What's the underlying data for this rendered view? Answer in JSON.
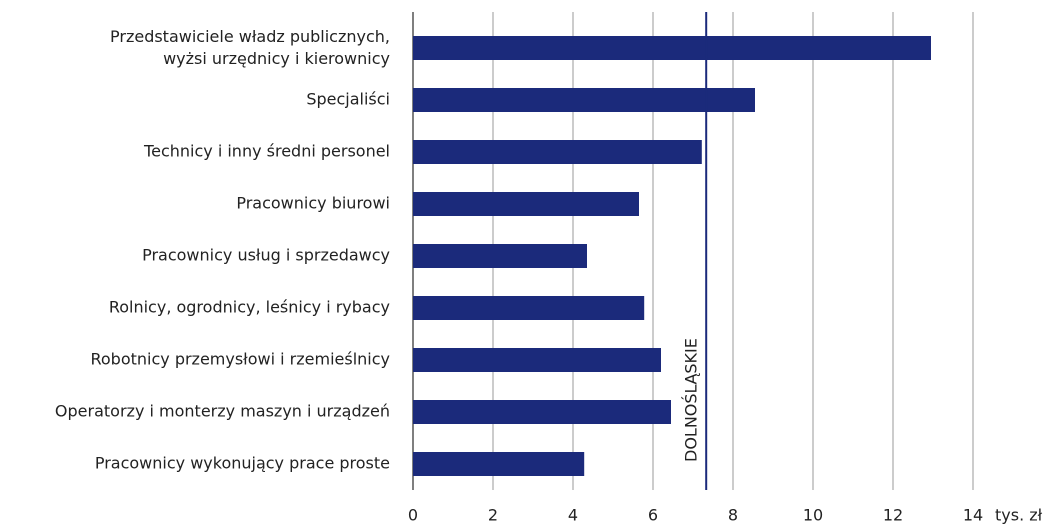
{
  "chart_data": {
    "type": "bar",
    "orientation": "horizontal",
    "categories": [
      "Przedstawiciele władz publicznych,\nwyżsi urzędnicy i kierownicy",
      "Specjaliści",
      "Technicy i inny średni personel",
      "Pracownicy biurowi",
      "Pracownicy usług i sprzedawcy",
      "Rolnicy, ogrodnicy, leśnicy i rybacy",
      "Robotnicy przemysłowi i rzemieślnicy",
      "Operatorzy i monterzy maszyn i urządzeń",
      "Pracownicy wykonujący prace proste"
    ],
    "values": [
      12.95,
      8.55,
      7.22,
      5.65,
      4.35,
      5.78,
      6.2,
      6.45,
      4.28
    ],
    "color": "#1b2a7b",
    "xlim": [
      0,
      14
    ],
    "xticks": [
      0,
      2,
      4,
      6,
      8,
      10,
      12,
      14
    ],
    "xlabel": "tys. zł",
    "grid": true,
    "reference_line": {
      "value": 7.33,
      "label": "DOLNOŚLĄSKIE"
    }
  }
}
